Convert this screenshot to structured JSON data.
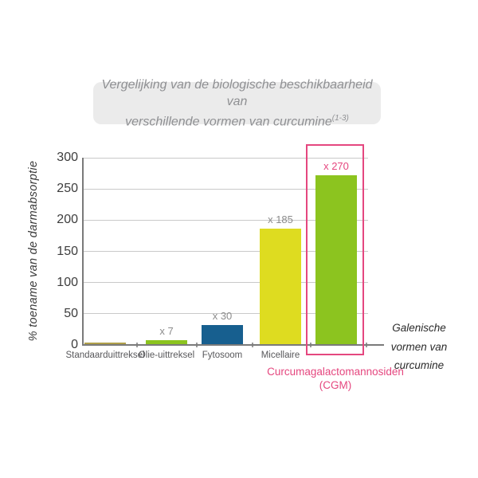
{
  "chart_data": {
    "type": "bar",
    "title_line1": "Vergelijking van de biologische beschikbaarheid van",
    "title_line2": "verschillende vormen van curcumine",
    "title_superscript": "(1-3)",
    "ylabel": "% toename van de darmabsorptie",
    "ylim": [
      0,
      300
    ],
    "yticks": [
      0,
      50,
      100,
      150,
      200,
      250,
      300
    ],
    "grid": true,
    "legend": "none",
    "categories": [
      "Standaarduittreksel",
      "Olie-uittreksel",
      "Fytosoom",
      "Micellaire",
      "Curcumagalactomannosiden (CGM)"
    ],
    "values": [
      1,
      7,
      30,
      185,
      270
    ],
    "bar_labels": [
      "",
      "x 7",
      "x 30",
      "x 185",
      "x 270"
    ],
    "bar_colors": [
      "#b0a04a",
      "#8cc41f",
      "#175f8f",
      "#dedc20",
      "#8cc41f"
    ],
    "bar_label_colors": [
      "#8c8c8c",
      "#8c8c8c",
      "#8c8c8c",
      "#8c8c8c",
      "#e5477f"
    ],
    "highlight": {
      "box_color": "#e5477f",
      "caption_line1": "Curcumagalactomannosiden",
      "caption_line2": "(CGM)"
    },
    "annotation": {
      "lines": [
        "Galenische",
        "vormen van",
        "curcumine"
      ]
    }
  },
  "colors": {
    "background": "#ffffff",
    "title_box_bg": "#ebebeb",
    "title_text": "#8f9093",
    "grid_line": "#c9c9c9",
    "axis_line": "#7a7a7a",
    "tick_label": "#3d3d3d",
    "category_label": "#57575a",
    "value_label": "#8c8c8c",
    "highlight_pink": "#e5477f",
    "annotation_text": "#2b2b2b"
  }
}
